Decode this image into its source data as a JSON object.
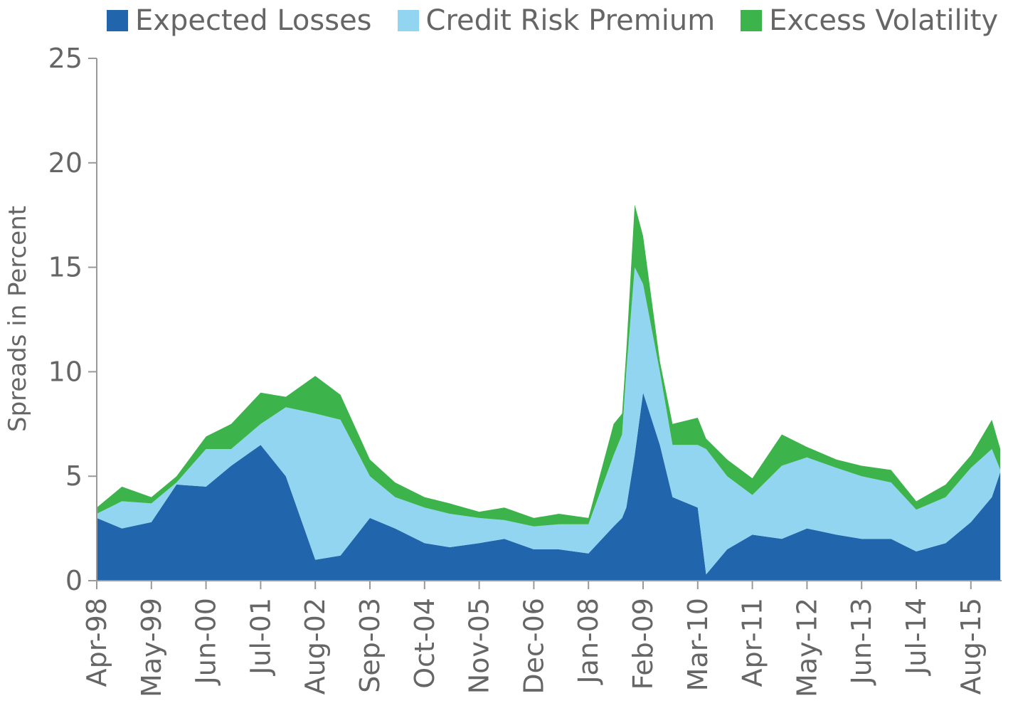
{
  "chart_data": {
    "type": "area",
    "stacked": true,
    "ylabel": "Spreads in Percent",
    "xlabel": "",
    "ylim": [
      0,
      25
    ],
    "yticks": [
      "0",
      "5",
      "10",
      "15",
      "20",
      "25"
    ],
    "xticks": [
      "Apr-98",
      "May-99",
      "Jun-00",
      "Jul-01",
      "Aug-02",
      "Sep-03",
      "Oct-04",
      "Nov-05",
      "Dec-06",
      "Jan-08",
      "Feb-09",
      "Mar-10",
      "Apr-11",
      "May-12",
      "Jun-13",
      "Jul-14",
      "Aug-15"
    ],
    "x": [
      "Apr-98",
      "Oct-98",
      "May-99",
      "Nov-99",
      "Jun-00",
      "Dec-00",
      "Jul-01",
      "Jan-02",
      "Aug-02",
      "Feb-03",
      "Sep-03",
      "Mar-04",
      "Oct-04",
      "Apr-05",
      "Nov-05",
      "May-06",
      "Dec-06",
      "Jun-07",
      "Jan-08",
      "Jul-08",
      "Sep-08",
      "Oct-08",
      "Dec-08",
      "Feb-09",
      "Jun-09",
      "Sep-09",
      "Mar-10",
      "May-10",
      "Oct-10",
      "Apr-11",
      "Nov-11",
      "May-12",
      "Dec-12",
      "Jun-13",
      "Jan-14",
      "Jul-14",
      "Feb-15",
      "Aug-15",
      "Jan-16",
      "Mar-16"
    ],
    "series": [
      {
        "name": "Expected Losses",
        "color": "#2166ac",
        "values": [
          3.0,
          2.5,
          2.8,
          4.6,
          4.5,
          5.5,
          6.5,
          5.0,
          1.0,
          1.2,
          3.0,
          2.5,
          1.8,
          1.6,
          1.8,
          2.0,
          1.5,
          1.5,
          1.3,
          2.6,
          3.0,
          3.5,
          6.0,
          9.0,
          6.5,
          4.0,
          3.5,
          0.3,
          1.5,
          2.2,
          2.0,
          2.5,
          2.2,
          2.0,
          2.0,
          1.4,
          1.8,
          2.8,
          4.0,
          5.2
        ]
      },
      {
        "name": "Credit Risk Premium",
        "color": "#92d5f0",
        "values": [
          0.2,
          1.3,
          0.9,
          0.1,
          1.8,
          0.8,
          1.0,
          3.3,
          7.0,
          6.5,
          2.0,
          1.5,
          1.7,
          1.6,
          1.2,
          0.9,
          1.1,
          1.2,
          1.4,
          3.4,
          4.0,
          6.5,
          9.0,
          5.2,
          3.5,
          2.5,
          3.0,
          6.0,
          3.5,
          1.9,
          3.5,
          3.4,
          3.2,
          3.0,
          2.7,
          2.0,
          2.2,
          2.6,
          2.3,
          0.1
        ]
      },
      {
        "name": "Excess Volatility",
        "color": "#3cb44b",
        "values": [
          0.3,
          0.7,
          0.3,
          0.3,
          0.6,
          1.2,
          1.5,
          0.5,
          1.8,
          1.2,
          0.8,
          0.7,
          0.5,
          0.5,
          0.3,
          0.6,
          0.4,
          0.5,
          0.3,
          1.5,
          1.0,
          1.0,
          3.0,
          2.3,
          0.5,
          1.0,
          1.3,
          0.5,
          0.8,
          0.8,
          1.5,
          0.5,
          0.4,
          0.5,
          0.6,
          0.4,
          0.6,
          0.6,
          1.4,
          1.0
        ]
      }
    ],
    "legend": {
      "position": "top",
      "labels": [
        "Expected Losses",
        "Credit Risk Premium",
        "Excess Volatility"
      ]
    },
    "grid": false
  }
}
